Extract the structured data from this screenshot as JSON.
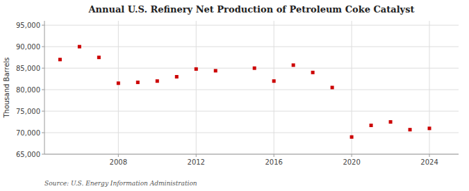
{
  "chart_data": {
    "type": "scatter",
    "title": "Annual U.S. Refinery Net Production of Petroleum Coke Catalyst",
    "ylabel": "Thousand Barrels",
    "source": "Source: U.S. Energy Information Administration",
    "x": [
      2005,
      2006,
      2007,
      2008,
      2009,
      2010,
      2011,
      2012,
      2013,
      2015,
      2016,
      2017,
      2018,
      2019,
      2020,
      2021,
      2022,
      2023,
      2024
    ],
    "values": [
      87000,
      90000,
      87500,
      81500,
      81700,
      82000,
      83000,
      84800,
      84400,
      85000,
      82000,
      85700,
      84000,
      80500,
      69000,
      71700,
      72500,
      70700,
      71000
    ],
    "color": "#cc0000",
    "marker": "square",
    "xlim": [
      2004.2,
      2025.5
    ],
    "xticks": [
      2008,
      2012,
      2016,
      2020,
      2024
    ],
    "ylim": [
      65000,
      96000
    ],
    "yticks": [
      {
        "value": 65000,
        "label": "65,000"
      },
      {
        "value": 70000,
        "label": "70,000"
      },
      {
        "value": 75000,
        "label": "75,000"
      },
      {
        "value": 80000,
        "label": "80,000"
      },
      {
        "value": 85000,
        "label": "85,000"
      },
      {
        "value": 90000,
        "label": "90,000"
      },
      {
        "value": 95000,
        "label": "95,000"
      }
    ],
    "grid": true
  }
}
